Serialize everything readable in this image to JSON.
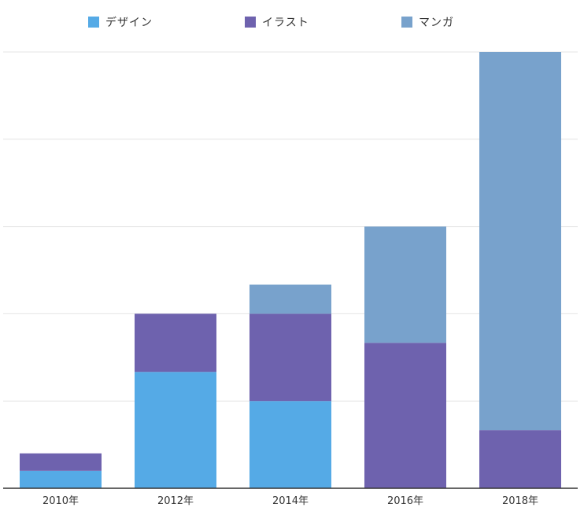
{
  "chart_data": {
    "type": "bar",
    "stacked": true,
    "title": "",
    "xlabel": "",
    "ylabel": "",
    "ylim": [
      0,
      15
    ],
    "grid": true,
    "legend_position": "top",
    "categories": [
      "2010年",
      "2012年",
      "2014年",
      "2016年",
      "2018年"
    ],
    "series": [
      {
        "name": "デザイン",
        "color": "#55aae6",
        "values": [
          0.6,
          4.0,
          3.0,
          0,
          0
        ]
      },
      {
        "name": "イラスト",
        "color": "#6e62ae",
        "values": [
          0.6,
          2.0,
          3.0,
          5.0,
          2.0
        ]
      },
      {
        "name": "マンガ",
        "color": "#78a2cc",
        "values": [
          0,
          0,
          1.0,
          4.0,
          13.0
        ]
      }
    ]
  }
}
